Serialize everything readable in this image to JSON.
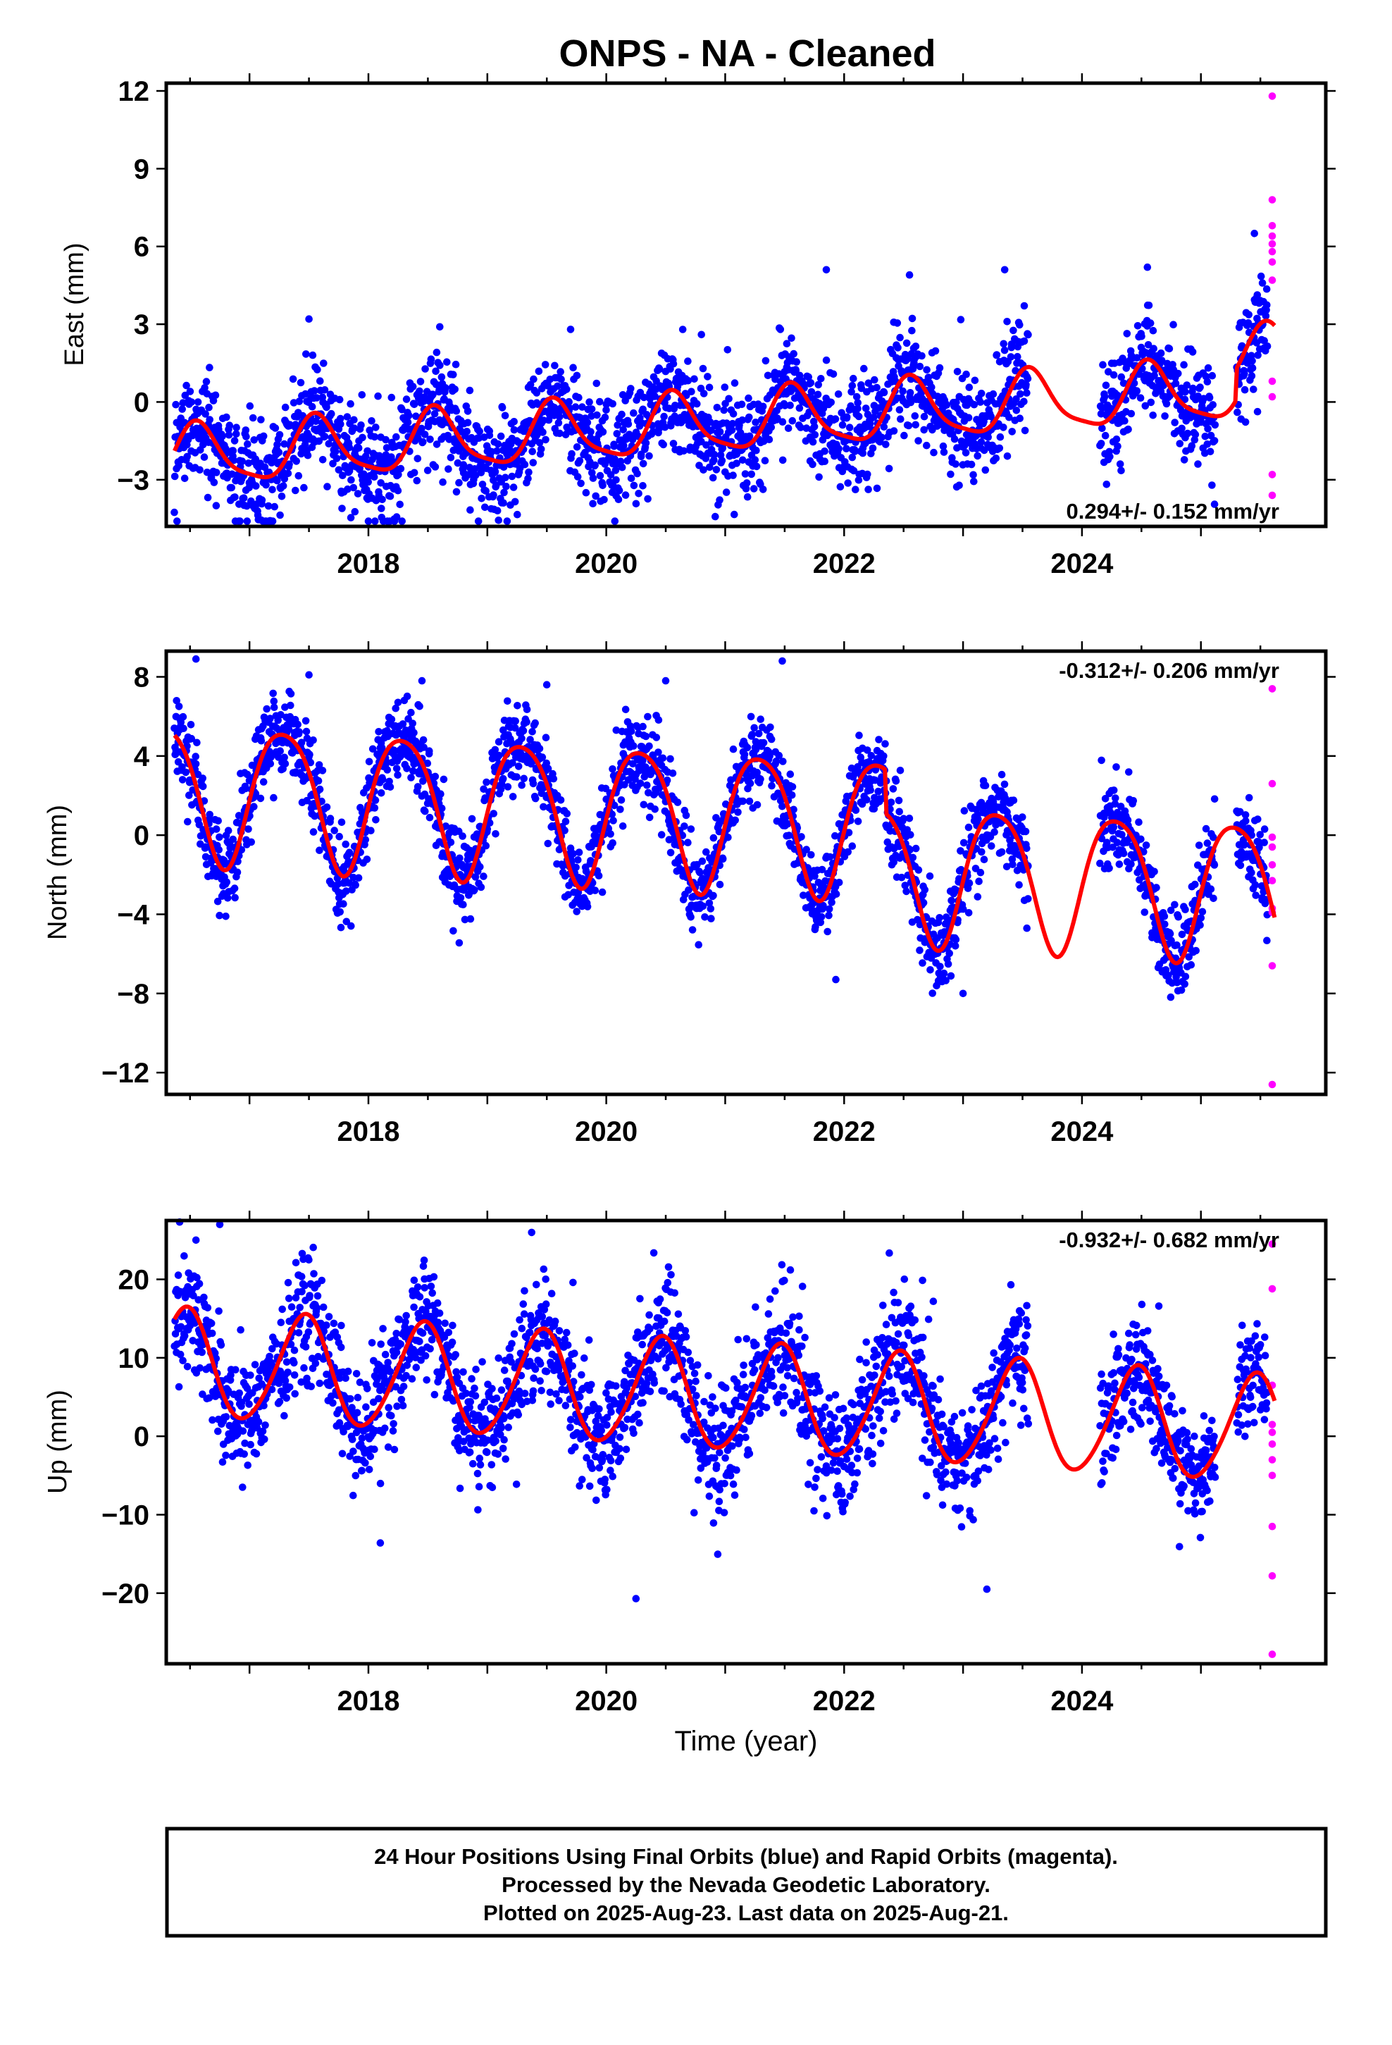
{
  "title": "ONPS  - NA - Cleaned",
  "xlabel": "Time (year)",
  "footer_lines": [
    "24 Hour Positions Using Final Orbits (blue) and Rapid Orbits (magenta).",
    "Processed by the Nevada Geodetic Laboratory.",
    "Plotted on 2025-Aug-23. Last data on 2025-Aug-21."
  ],
  "colors": {
    "final_orbits": "#0000ff",
    "rapid_orbits": "#ff00ff",
    "model_fit": "#ff0000",
    "frame": "#000000"
  },
  "chart_data": [
    {
      "type": "scatter",
      "component": "east",
      "ylabel": "East (mm)",
      "rate_label": "0.294+/- 0.152 mm/yr",
      "rate_position": "bottom-right",
      "x_ticks": [
        2018,
        2020,
        2022,
        2024
      ],
      "xlim": [
        2016.3,
        2026.05
      ],
      "y_ticks": [
        -3,
        0,
        3,
        6,
        9,
        12
      ],
      "ylim": [
        -4.8,
        12.3
      ],
      "series": [
        {
          "role": "final",
          "points_per_year": 280,
          "gaps": [
            [
              2023.55,
              2024.15
            ],
            [
              2025.12,
              2025.3
            ]
          ],
          "spread": 0.95,
          "outliers": [
            [
              2017.5,
              3.2
            ],
            [
              2018.6,
              2.9
            ],
            [
              2019.7,
              2.8
            ],
            [
              2020.8,
              2.6
            ],
            [
              2021.85,
              5.1
            ],
            [
              2022.55,
              4.9
            ],
            [
              2023.35,
              5.1
            ],
            [
              2024.55,
              5.2
            ],
            [
              2025.45,
              6.5
            ],
            [
              2018.0,
              -4.6
            ],
            [
              2016.72,
              -4.0
            ]
          ]
        },
        {
          "role": "rapid",
          "x": [
            2025.6,
            2025.6,
            2025.6,
            2025.6,
            2025.6,
            2025.6,
            2025.6,
            2025.6,
            2025.6,
            2025.6,
            2025.6,
            2025.6
          ],
          "y": [
            11.8,
            7.8,
            6.8,
            6.4,
            5.8,
            5.4,
            4.7,
            0.8,
            0.2,
            -2.8,
            -3.6,
            6.1
          ]
        },
        {
          "role": "model",
          "start": 2016.37,
          "end": 2025.62,
          "rate": 0.294,
          "offset": -0.8,
          "annual_sin": -0.45,
          "annual_cos": -1.05,
          "semiannual_sin": 0.1,
          "semiannual_cos": 0.25,
          "steps": [
            [
              2025.3,
              1.2
            ]
          ]
        }
      ]
    },
    {
      "type": "scatter",
      "component": "north",
      "ylabel": "North (mm)",
      "rate_label": "-0.312+/- 0.206 mm/yr",
      "rate_position": "top-right",
      "x_ticks": [
        2018,
        2020,
        2022,
        2024
      ],
      "xlim": [
        2016.3,
        2026.05
      ],
      "y_ticks": [
        -12,
        -8,
        -4,
        0,
        4,
        8
      ],
      "ylim": [
        -13.1,
        9.3
      ],
      "series": [
        {
          "role": "final",
          "points_per_year": 280,
          "gaps": [
            [
              2023.55,
              2024.15
            ],
            [
              2025.12,
              2025.3
            ]
          ],
          "spread": 1.0,
          "outliers": [
            [
              2016.55,
              8.9
            ],
            [
              2017.5,
              8.1
            ],
            [
              2018.45,
              7.8
            ],
            [
              2019.5,
              7.6
            ],
            [
              2020.5,
              7.8
            ],
            [
              2021.48,
              8.8
            ],
            [
              2021.93,
              -7.3
            ],
            [
              2023.0,
              -8.0
            ]
          ]
        },
        {
          "role": "rapid",
          "x": [
            2025.6,
            2025.6,
            2025.6,
            2025.6,
            2025.6,
            2025.6,
            2025.6,
            2025.6,
            2025.6,
            2025.6
          ],
          "y": [
            7.4,
            2.6,
            -0.1,
            -0.6,
            -1.5,
            -2.3,
            -3.7,
            -3.9,
            -6.6,
            -12.6
          ]
        },
        {
          "role": "model",
          "start": 2016.37,
          "end": 2025.62,
          "rate": -0.312,
          "offset": 0.9,
          "annual_sin": 3.4,
          "annual_cos": -0.8,
          "semiannual_sin": 0.3,
          "semiannual_cos": 0.4,
          "steps": [
            [
              2022.35,
              -2.2
            ]
          ]
        }
      ]
    },
    {
      "type": "scatter",
      "component": "up",
      "ylabel": "Up (mm)",
      "rate_label": "-0.932+/- 0.682 mm/yr",
      "rate_position": "top-right",
      "x_ticks": [
        2018,
        2020,
        2022,
        2024
      ],
      "xlim": [
        2016.3,
        2026.05
      ],
      "y_ticks": [
        -20,
        -10,
        0,
        10,
        20
      ],
      "ylim": [
        -29.0,
        27.5
      ],
      "series": [
        {
          "role": "final",
          "points_per_year": 280,
          "gaps": [
            [
              2023.55,
              2024.15
            ],
            [
              2025.12,
              2025.3
            ]
          ],
          "spread": 3.6,
          "outliers": [
            [
              2016.75,
              27.0
            ],
            [
              2016.55,
              25.0
            ],
            [
              2019.72,
              19.6
            ],
            [
              2021.65,
              19.1
            ],
            [
              2018.1,
              -13.6
            ],
            [
              2020.25,
              -20.7
            ],
            [
              2023.2,
              -19.5
            ],
            [
              2022.75,
              17.2
            ]
          ]
        },
        {
          "role": "rapid",
          "x": [
            2025.6,
            2025.6,
            2025.6,
            2025.6,
            2025.6,
            2025.6,
            2025.6,
            2025.6,
            2025.6,
            2025.6,
            2025.6
          ],
          "y": [
            24.5,
            18.8,
            6.5,
            1.5,
            0.5,
            -1.0,
            -3.0,
            -5.0,
            -11.5,
            -17.8,
            -27.8
          ]
        },
        {
          "role": "model",
          "start": 2016.37,
          "end": 2025.62,
          "rate": -0.932,
          "offset": 5.0,
          "annual_sin": 1.8,
          "annual_cos": -6.6,
          "semiannual_sin": 0.2,
          "semiannual_cos": 0.6,
          "steps": []
        }
      ]
    }
  ]
}
